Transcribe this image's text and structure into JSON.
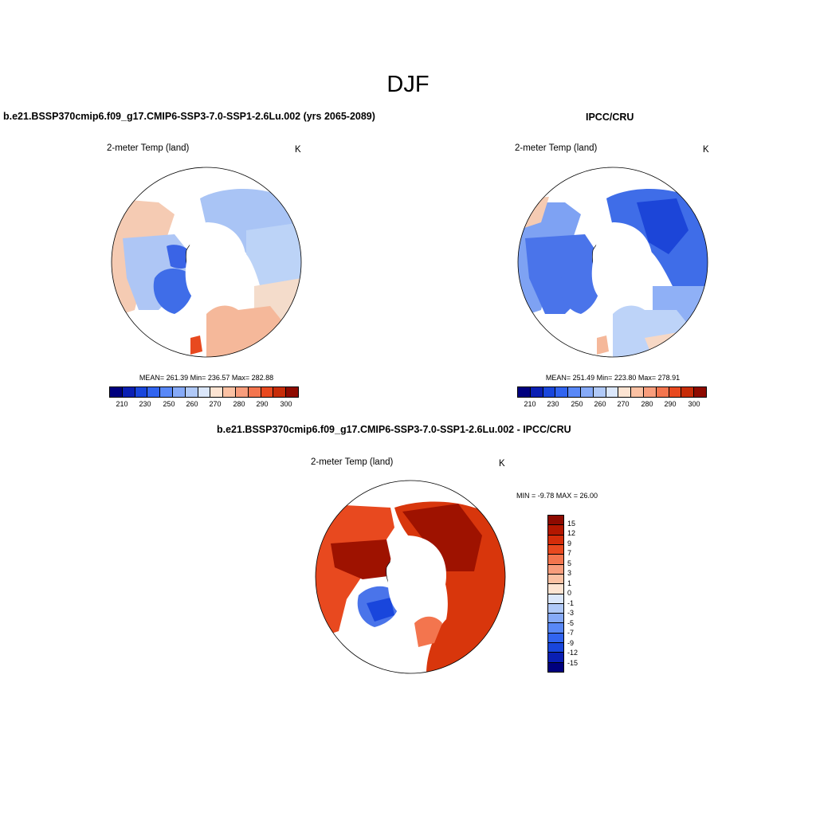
{
  "figure": {
    "title": "DJF"
  },
  "palettes": {
    "abs": [
      "#00007e",
      "#0a1fb3",
      "#1946dc",
      "#3164f0",
      "#5988f7",
      "#86aaf8",
      "#b0c9f8",
      "#dbe7fb",
      "#fde4d2",
      "#fbc1a3",
      "#f89d7c",
      "#f3754e",
      "#e8491f",
      "#c72c08",
      "#8e0a00"
    ],
    "diff": [
      "#8e0a00",
      "#b31700",
      "#d42d0a",
      "#e8491f",
      "#f3754e",
      "#f89d7c",
      "#fbc1a3",
      "#fde4d2",
      "#dbe7fb",
      "#b0c9f8",
      "#86aaf8",
      "#5988f7",
      "#3164f0",
      "#1946dc",
      "#0a1fb3",
      "#00007e"
    ]
  },
  "panels": {
    "model": {
      "header": "b.e21.BSSP370cmip6.f09_g17.CMIP6-SSP3-7.0-SSP1-2.6Lu.002 (yrs 2065-2089)",
      "variable": "2-meter Temp (land)",
      "units": "K",
      "stats": "MEAN= 261.39  Min= 236.57  Max= 282.88",
      "colorbar_ticks": [
        "210",
        "230",
        "250",
        "260",
        "270",
        "280",
        "290",
        "300"
      ]
    },
    "obs": {
      "header": "IPCC/CRU",
      "variable": "2-meter Temp (land)",
      "units": "K",
      "stats": "MEAN= 251.49  Min= 223.80  Max= 278.91",
      "colorbar_ticks": [
        "210",
        "230",
        "250",
        "260",
        "270",
        "280",
        "290",
        "300"
      ]
    },
    "diff": {
      "header": "b.e21.BSSP370cmip6.f09_g17.CMIP6-SSP3-7.0-SSP1-2.6Lu.002 - IPCC/CRU",
      "variable": "2-meter Temp (land)",
      "units": "K",
      "stats": "MIN =  -9.78 MAX =  26.00",
      "colorbar_ticks": [
        "15",
        "12",
        "9",
        "7",
        "5",
        "3",
        "1",
        "0",
        "-1",
        "-3",
        "-5",
        "-7",
        "-9",
        "-12",
        "-15"
      ]
    }
  }
}
